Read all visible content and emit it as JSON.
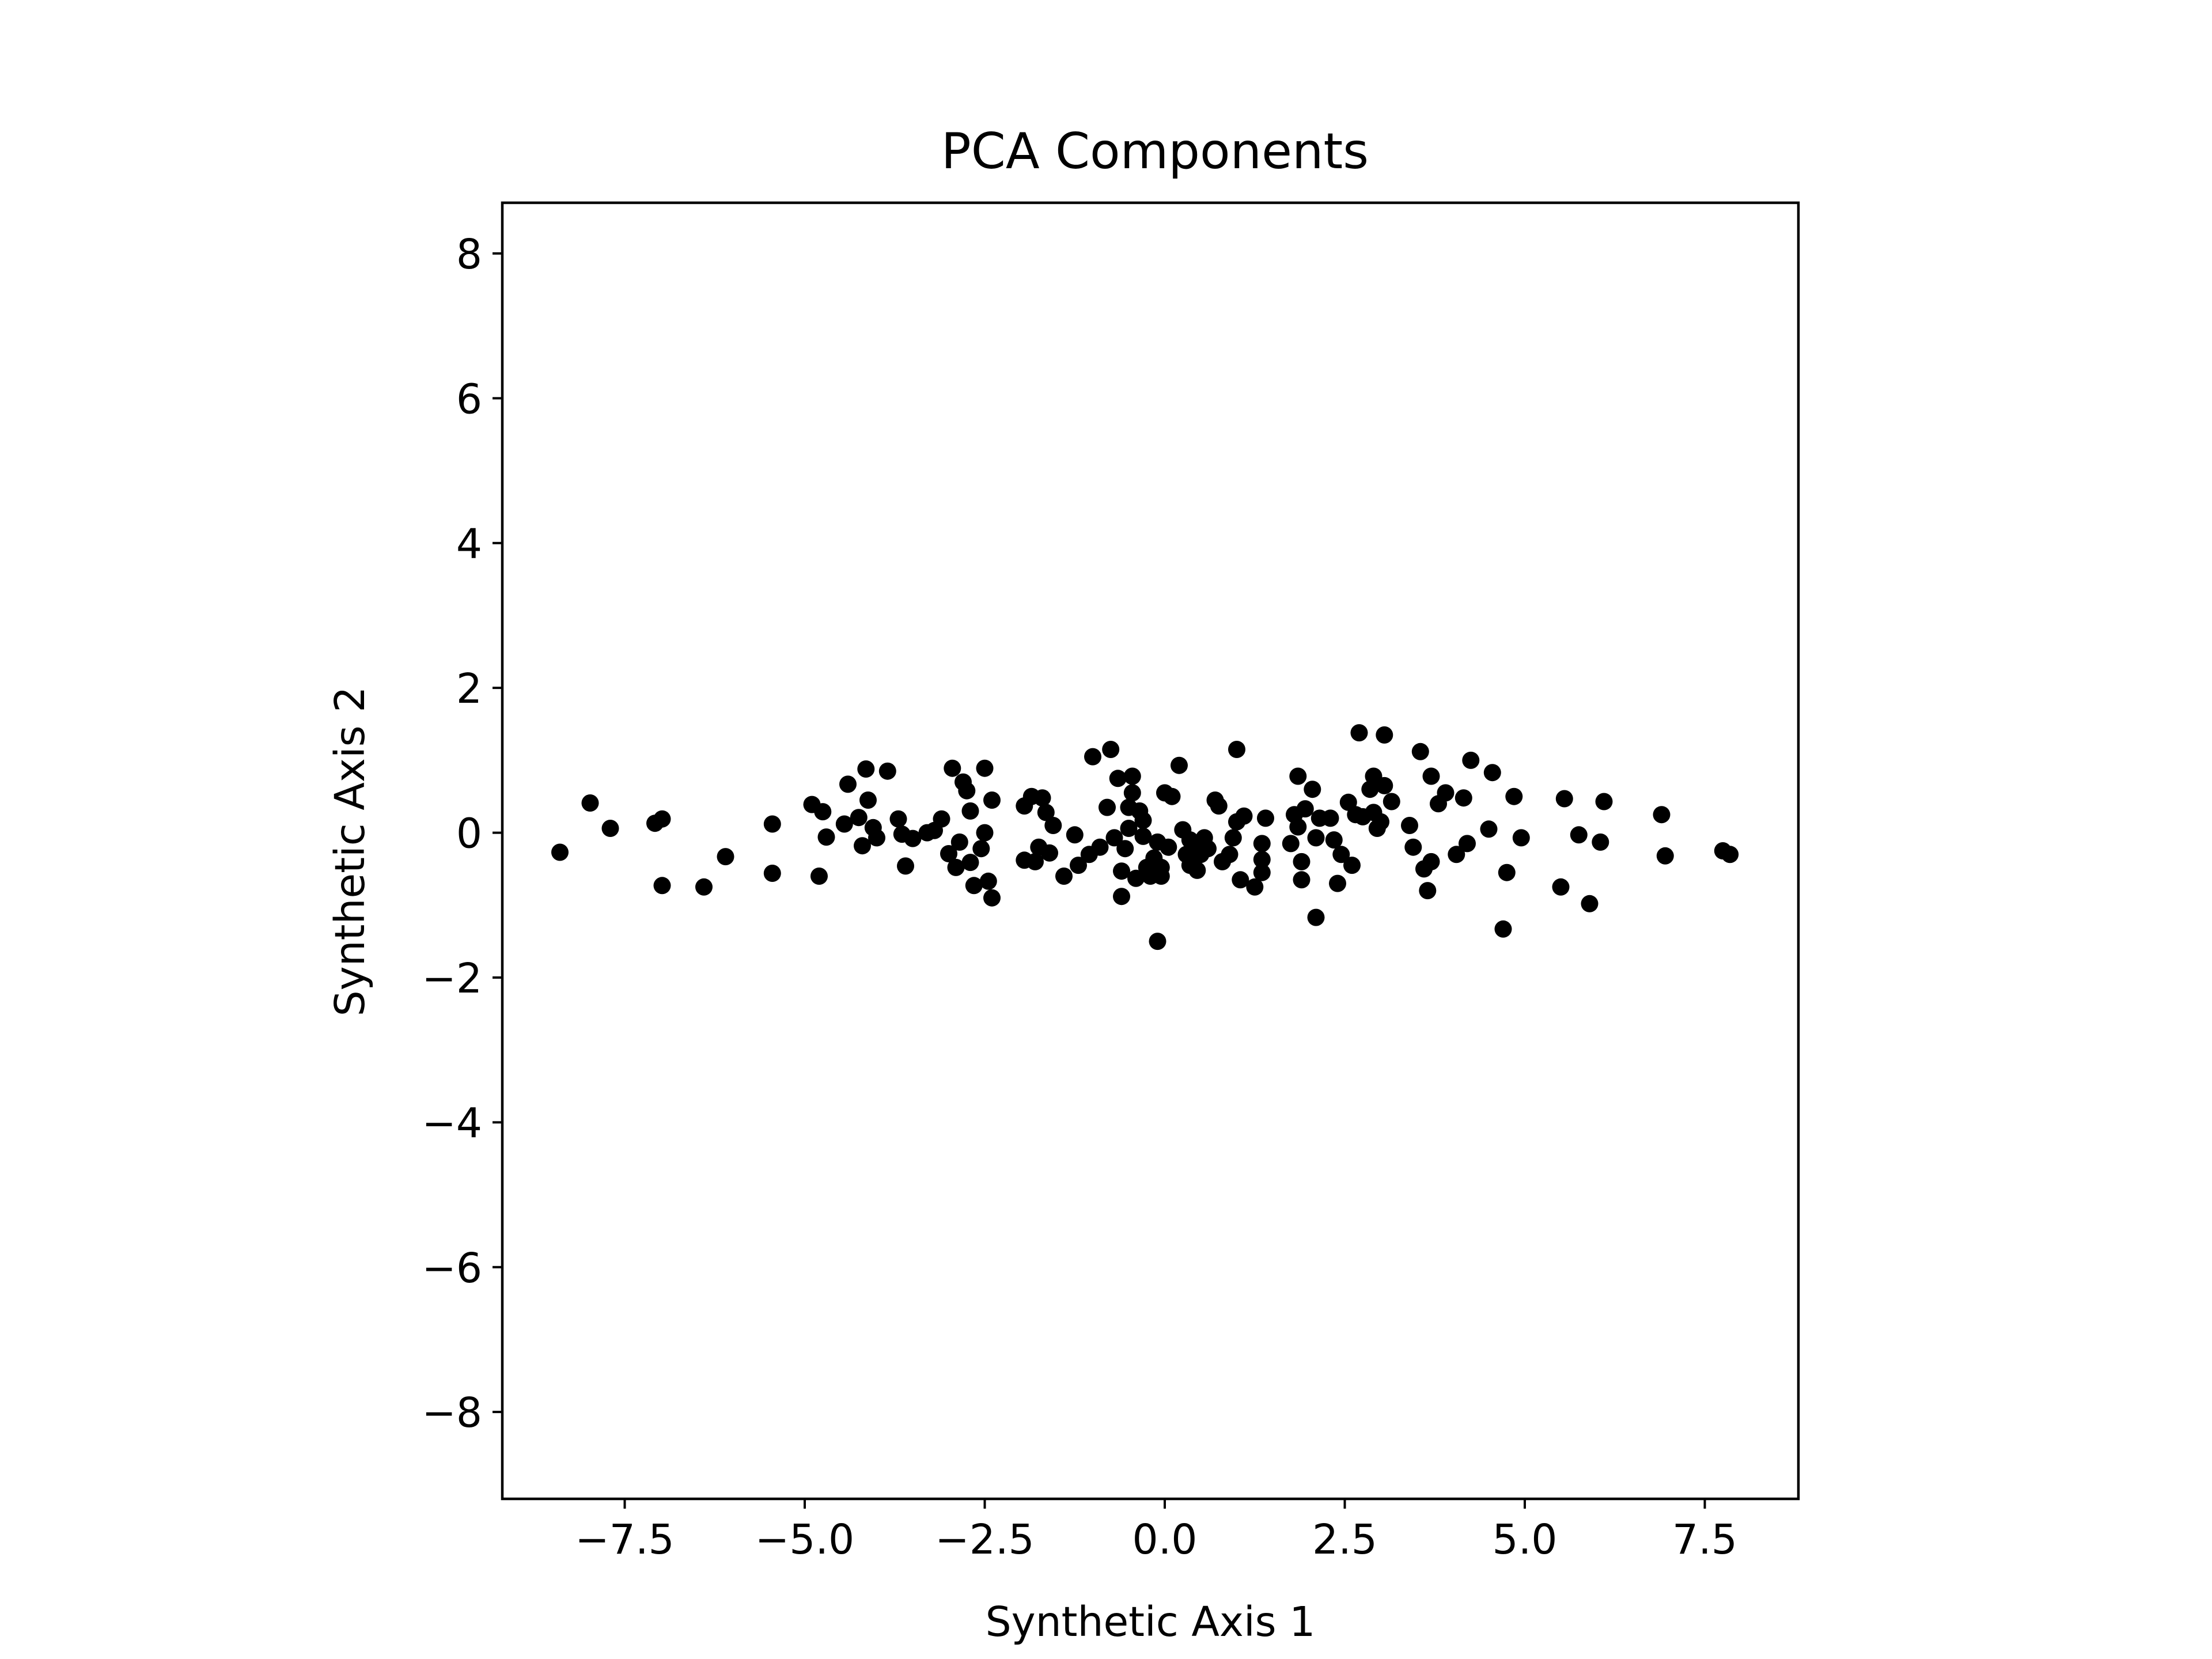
{
  "chart_data": {
    "type": "scatter",
    "title": "PCA Components",
    "xlabel": "Synthetic Axis 1",
    "ylabel": "Synthetic Axis 2",
    "xlim": [
      -9.2,
      8.8
    ],
    "ylim": [
      -9.2,
      8.7
    ],
    "xticks": [
      -7.5,
      -5.0,
      -2.5,
      0.0,
      2.5,
      5.0,
      7.5
    ],
    "xtick_labels": [
      "−7.5",
      "−5.0",
      "−2.5",
      "0.0",
      "2.5",
      "5.0",
      "7.5"
    ],
    "yticks": [
      -8,
      -6,
      -4,
      -2,
      0,
      2,
      4,
      6,
      8
    ],
    "ytick_labels": [
      "−8",
      "−6",
      "−4",
      "−2",
      "0",
      "2",
      "4",
      "6",
      "8"
    ],
    "grid": false,
    "marker_color": "#000000",
    "points": [
      [
        -8.4,
        -0.27
      ],
      [
        -7.98,
        0.41
      ],
      [
        -7.7,
        0.06
      ],
      [
        -7.08,
        0.13
      ],
      [
        -6.98,
        0.19
      ],
      [
        -6.98,
        -0.73
      ],
      [
        -6.4,
        -0.75
      ],
      [
        -6.1,
        -0.33
      ],
      [
        -5.45,
        -0.56
      ],
      [
        -5.45,
        0.12
      ],
      [
        -4.9,
        0.39
      ],
      [
        -4.8,
        -0.6
      ],
      [
        -4.75,
        0.29
      ],
      [
        -4.7,
        -0.06
      ],
      [
        -4.45,
        0.12
      ],
      [
        -4.4,
        0.67
      ],
      [
        -4.25,
        0.21
      ],
      [
        -4.2,
        -0.18
      ],
      [
        -4.15,
        0.88
      ],
      [
        -4.12,
        0.45
      ],
      [
        -4.05,
        0.07
      ],
      [
        -4.0,
        -0.07
      ],
      [
        -3.85,
        0.85
      ],
      [
        -3.7,
        0.19
      ],
      [
        -3.65,
        -0.02
      ],
      [
        -3.6,
        -0.46
      ],
      [
        -3.5,
        -0.08
      ],
      [
        -3.3,
        0.0
      ],
      [
        -3.2,
        0.03
      ],
      [
        -3.1,
        0.19
      ],
      [
        -3.0,
        -0.29
      ],
      [
        -2.95,
        0.89
      ],
      [
        -2.9,
        -0.48
      ],
      [
        -2.85,
        -0.13
      ],
      [
        -2.8,
        0.7
      ],
      [
        -2.75,
        0.58
      ],
      [
        -2.7,
        0.3
      ],
      [
        -2.7,
        -0.41
      ],
      [
        -2.65,
        -0.73
      ],
      [
        -2.5,
        0.0
      ],
      [
        -2.55,
        -0.22
      ],
      [
        -2.5,
        0.89
      ],
      [
        -2.45,
        -0.67
      ],
      [
        -2.4,
        -0.9
      ],
      [
        -2.4,
        0.45
      ],
      [
        -1.95,
        -0.38
      ],
      [
        -1.95,
        0.37
      ],
      [
        -1.85,
        0.5
      ],
      [
        -1.8,
        -0.4
      ],
      [
        -1.75,
        -0.2
      ],
      [
        -1.7,
        0.48
      ],
      [
        -1.65,
        0.28
      ],
      [
        -1.6,
        -0.28
      ],
      [
        -1.55,
        0.1
      ],
      [
        -1.4,
        -0.6
      ],
      [
        -1.25,
        -0.03
      ],
      [
        -1.2,
        -0.45
      ],
      [
        -1.05,
        -0.3
      ],
      [
        -1.0,
        1.05
      ],
      [
        -0.9,
        -0.2
      ],
      [
        -0.8,
        0.35
      ],
      [
        -0.75,
        1.15
      ],
      [
        -0.7,
        -0.07
      ],
      [
        -0.65,
        0.75
      ],
      [
        -0.6,
        -0.88
      ],
      [
        -0.6,
        -0.53
      ],
      [
        -0.55,
        -0.22
      ],
      [
        -0.5,
        0.35
      ],
      [
        -0.5,
        0.06
      ],
      [
        -0.45,
        0.78
      ],
      [
        -0.45,
        0.55
      ],
      [
        -0.4,
        -0.63
      ],
      [
        -0.35,
        0.3
      ],
      [
        -0.3,
        0.17
      ],
      [
        -0.3,
        -0.05
      ],
      [
        -0.25,
        -0.48
      ],
      [
        -0.2,
        -0.6
      ],
      [
        -0.15,
        -0.35
      ],
      [
        -0.1,
        -0.13
      ],
      [
        -0.05,
        -0.48
      ],
      [
        -0.05,
        -0.6
      ],
      [
        -0.1,
        -1.5
      ],
      [
        0.05,
        -0.2
      ],
      [
        0.0,
        0.55
      ],
      [
        0.1,
        0.5
      ],
      [
        0.2,
        0.93
      ],
      [
        0.25,
        0.04
      ],
      [
        0.3,
        -0.3
      ],
      [
        0.35,
        -0.1
      ],
      [
        0.35,
        -0.45
      ],
      [
        0.4,
        -0.2
      ],
      [
        0.45,
        -0.52
      ],
      [
        0.5,
        -0.3
      ],
      [
        0.55,
        -0.07
      ],
      [
        0.6,
        -0.22
      ],
      [
        0.7,
        0.45
      ],
      [
        0.75,
        0.37
      ],
      [
        0.8,
        -0.4
      ],
      [
        0.9,
        -0.3
      ],
      [
        0.95,
        -0.07
      ],
      [
        1.0,
        1.15
      ],
      [
        1.0,
        0.15
      ],
      [
        1.05,
        -0.65
      ],
      [
        1.1,
        0.23
      ],
      [
        1.25,
        -0.75
      ],
      [
        1.35,
        -0.55
      ],
      [
        1.35,
        -0.15
      ],
      [
        1.4,
        0.2
      ],
      [
        1.35,
        -0.37
      ],
      [
        1.75,
        -0.15
      ],
      [
        1.8,
        0.25
      ],
      [
        1.85,
        0.78
      ],
      [
        1.85,
        0.08
      ],
      [
        1.9,
        -0.4
      ],
      [
        1.9,
        -0.65
      ],
      [
        1.95,
        0.33
      ],
      [
        2.05,
        0.6
      ],
      [
        2.1,
        -1.17
      ],
      [
        2.15,
        0.2
      ],
      [
        2.1,
        -0.07
      ],
      [
        2.3,
        0.2
      ],
      [
        2.35,
        -0.1
      ],
      [
        2.4,
        -0.7
      ],
      [
        2.45,
        -0.3
      ],
      [
        2.55,
        0.42
      ],
      [
        2.6,
        -0.45
      ],
      [
        2.65,
        0.25
      ],
      [
        2.7,
        1.38
      ],
      [
        2.75,
        0.22
      ],
      [
        2.85,
        0.6
      ],
      [
        2.9,
        0.78
      ],
      [
        2.9,
        0.28
      ],
      [
        2.95,
        0.06
      ],
      [
        3.0,
        0.15
      ],
      [
        3.05,
        0.65
      ],
      [
        3.05,
        1.35
      ],
      [
        3.15,
        0.43
      ],
      [
        3.4,
        0.1
      ],
      [
        3.45,
        -0.2
      ],
      [
        3.55,
        1.12
      ],
      [
        3.6,
        -0.5
      ],
      [
        3.65,
        -0.8
      ],
      [
        3.7,
        0.78
      ],
      [
        3.7,
        -0.4
      ],
      [
        3.8,
        0.4
      ],
      [
        3.9,
        0.55
      ],
      [
        4.05,
        -0.3
      ],
      [
        4.15,
        0.48
      ],
      [
        4.2,
        -0.15
      ],
      [
        4.25,
        1.0
      ],
      [
        4.5,
        0.05
      ],
      [
        4.55,
        0.83
      ],
      [
        4.7,
        -1.33
      ],
      [
        4.75,
        -0.55
      ],
      [
        4.85,
        0.5
      ],
      [
        4.95,
        -0.07
      ],
      [
        5.5,
        -0.75
      ],
      [
        5.55,
        0.47
      ],
      [
        5.75,
        -0.03
      ],
      [
        5.9,
        -0.98
      ],
      [
        6.05,
        -0.13
      ],
      [
        6.1,
        0.43
      ],
      [
        6.9,
        0.25
      ],
      [
        6.95,
        -0.32
      ],
      [
        7.75,
        -0.25
      ],
      [
        7.85,
        -0.3
      ]
    ]
  }
}
